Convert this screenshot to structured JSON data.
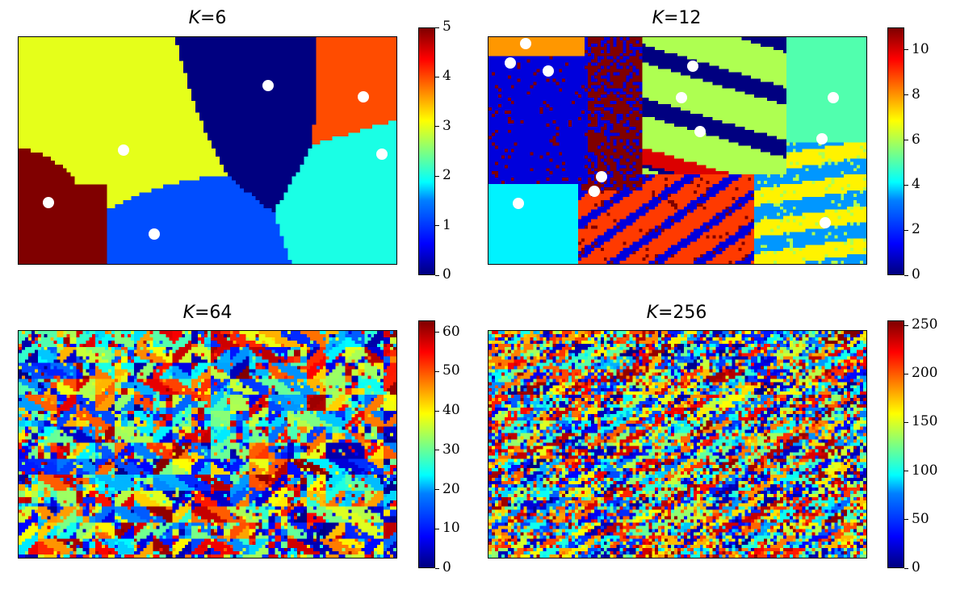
{
  "chart_data": [
    {
      "type": "heatmap",
      "title": "K=6",
      "title_var": "K",
      "title_value": "=6",
      "k": 6,
      "colormap": "jet",
      "colorbar": {
        "vmin": 0,
        "vmax": 5,
        "ticks": [
          0,
          1,
          2,
          3,
          4,
          5
        ],
        "tick_labels": [
          "0",
          "1",
          "2",
          "3",
          "4",
          "5"
        ]
      },
      "regions_description": "Voronoi-like segmentation into 6 clusters",
      "centroids_marked": true,
      "xticks": false,
      "yticks": false
    },
    {
      "type": "heatmap",
      "title": "K=12",
      "title_var": "K",
      "title_value": "=12",
      "k": 12,
      "colormap": "jet",
      "colorbar": {
        "vmin": 0,
        "vmax": 11,
        "ticks": [
          0,
          2,
          4,
          6,
          8,
          10
        ],
        "tick_labels": [
          "0",
          "2",
          "4",
          "6",
          "8",
          "10"
        ]
      },
      "centroids_marked": true,
      "xticks": false,
      "yticks": false
    },
    {
      "type": "heatmap",
      "title": "K=64",
      "title_var": "K",
      "title_value": "=64",
      "k": 64,
      "colormap": "jet",
      "colorbar": {
        "vmin": 0,
        "vmax": 63,
        "ticks": [
          0,
          10,
          20,
          30,
          40,
          50,
          60
        ],
        "tick_labels": [
          "0",
          "10",
          "20",
          "30",
          "40",
          "50",
          "60"
        ]
      },
      "centroids_marked": false,
      "xticks": false,
      "yticks": false
    },
    {
      "type": "heatmap",
      "title": "K=256",
      "title_var": "K",
      "title_value": "=256",
      "k": 256,
      "colormap": "jet",
      "colorbar": {
        "vmin": 0,
        "vmax": 255,
        "ticks": [
          0,
          50,
          100,
          150,
          200,
          250
        ],
        "tick_labels": [
          "0",
          "50",
          "100",
          "150",
          "200",
          "250"
        ]
      },
      "centroids_marked": false,
      "xticks": false,
      "yticks": false
    }
  ]
}
